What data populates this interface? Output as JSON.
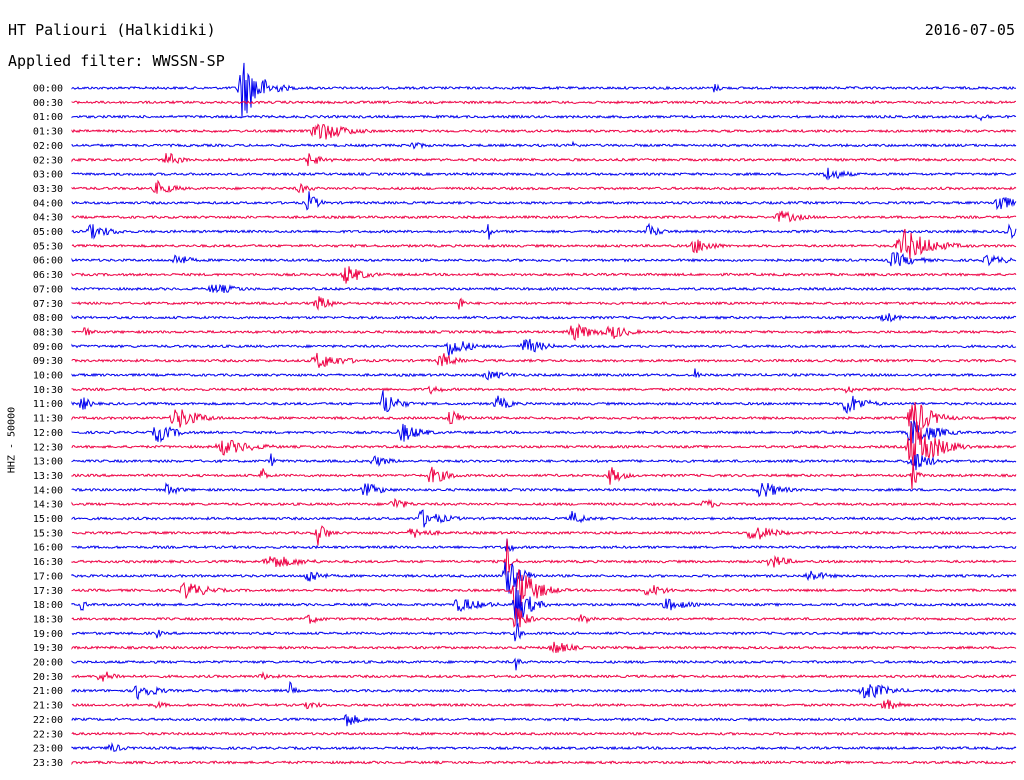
{
  "header": {
    "station": "HT Paliouri (Halkidiki)",
    "date": "2016-07-05",
    "filter_text": "Applied filter: WWSSN-SP"
  },
  "chart_data": {
    "type": "helicorder",
    "title": "HT Paliouri (Halkidiki)",
    "date": "2016-07-05",
    "ylabel": "HHZ - 50000",
    "line_minutes": 30,
    "colors": [
      "#0000ee",
      "#ee0044"
    ],
    "rows": [
      {
        "time": "00:00",
        "events": [
          {
            "x": 0.18,
            "amp": 3.5,
            "dur": 0.04
          },
          {
            "x": 0.68,
            "amp": 0.5,
            "dur": 0.02
          }
        ]
      },
      {
        "time": "00:30",
        "events": []
      },
      {
        "time": "01:00",
        "events": [
          {
            "x": 0.96,
            "amp": 0.5,
            "dur": 0.03
          }
        ]
      },
      {
        "time": "01:30",
        "events": [
          {
            "x": 0.26,
            "amp": 1.2,
            "dur": 0.06
          }
        ]
      },
      {
        "time": "02:00",
        "events": [
          {
            "x": 0.36,
            "amp": 0.5,
            "dur": 0.03
          },
          {
            "x": 0.53,
            "amp": 0.9,
            "dur": 0.01
          }
        ]
      },
      {
        "time": "02:30",
        "events": [
          {
            "x": 0.1,
            "amp": 0.9,
            "dur": 0.03
          },
          {
            "x": 0.25,
            "amp": 0.7,
            "dur": 0.04
          }
        ]
      },
      {
        "time": "03:00",
        "events": [
          {
            "x": 0.8,
            "amp": 0.8,
            "dur": 0.04
          }
        ]
      },
      {
        "time": "03:30",
        "events": [
          {
            "x": 0.09,
            "amp": 0.8,
            "dur": 0.04
          },
          {
            "x": 0.24,
            "amp": 0.6,
            "dur": 0.03
          }
        ]
      },
      {
        "time": "04:00",
        "events": [
          {
            "x": 0.25,
            "amp": 1.3,
            "dur": 0.02
          },
          {
            "x": 0.98,
            "amp": 1.2,
            "dur": 0.03
          }
        ]
      },
      {
        "time": "04:30",
        "events": [
          {
            "x": 0.75,
            "amp": 0.7,
            "dur": 0.05
          }
        ]
      },
      {
        "time": "05:00",
        "events": [
          {
            "x": 0.02,
            "amp": 0.8,
            "dur": 0.05
          },
          {
            "x": 0.44,
            "amp": 1.3,
            "dur": 0.01
          },
          {
            "x": 0.61,
            "amp": 0.8,
            "dur": 0.03
          },
          {
            "x": 0.99,
            "amp": 1.2,
            "dur": 0.02
          }
        ]
      },
      {
        "time": "05:30",
        "events": [
          {
            "x": 0.66,
            "amp": 0.9,
            "dur": 0.04
          },
          {
            "x": 0.88,
            "amp": 1.9,
            "dur": 0.06
          }
        ]
      },
      {
        "time": "06:00",
        "events": [
          {
            "x": 0.11,
            "amp": 0.8,
            "dur": 0.03
          },
          {
            "x": 0.87,
            "amp": 0.9,
            "dur": 0.05
          },
          {
            "x": 0.97,
            "amp": 0.6,
            "dur": 0.05
          }
        ]
      },
      {
        "time": "06:30",
        "events": [
          {
            "x": 0.29,
            "amp": 1.1,
            "dur": 0.04
          }
        ]
      },
      {
        "time": "07:00",
        "events": [
          {
            "x": 0.15,
            "amp": 0.6,
            "dur": 0.06
          }
        ]
      },
      {
        "time": "07:30",
        "events": [
          {
            "x": 0.26,
            "amp": 0.8,
            "dur": 0.04
          },
          {
            "x": 0.41,
            "amp": 1.0,
            "dur": 0.01
          }
        ]
      },
      {
        "time": "08:00",
        "events": [
          {
            "x": 0.86,
            "amp": 0.7,
            "dur": 0.03
          }
        ]
      },
      {
        "time": "08:30",
        "events": [
          {
            "x": 0.01,
            "amp": 0.8,
            "dur": 0.02
          },
          {
            "x": 0.53,
            "amp": 1.0,
            "dur": 0.05
          },
          {
            "x": 0.57,
            "amp": 0.9,
            "dur": 0.04
          }
        ]
      },
      {
        "time": "09:00",
        "events": [
          {
            "x": 0.4,
            "amp": 1.2,
            "dur": 0.04
          },
          {
            "x": 0.48,
            "amp": 1.0,
            "dur": 0.04
          }
        ]
      },
      {
        "time": "09:30",
        "events": [
          {
            "x": 0.26,
            "amp": 0.9,
            "dur": 0.06
          },
          {
            "x": 0.39,
            "amp": 1.0,
            "dur": 0.03
          }
        ]
      },
      {
        "time": "10:00",
        "events": [
          {
            "x": 0.44,
            "amp": 0.5,
            "dur": 0.06
          },
          {
            "x": 0.66,
            "amp": 0.7,
            "dur": 0.01
          }
        ]
      },
      {
        "time": "10:30",
        "events": [
          {
            "x": 0.38,
            "amp": 0.5,
            "dur": 0.03
          },
          {
            "x": 0.82,
            "amp": 0.6,
            "dur": 0.02
          }
        ]
      },
      {
        "time": "11:00",
        "events": [
          {
            "x": 0.01,
            "amp": 0.9,
            "dur": 0.02
          },
          {
            "x": 0.33,
            "amp": 1.6,
            "dur": 0.03
          },
          {
            "x": 0.45,
            "amp": 0.9,
            "dur": 0.03
          },
          {
            "x": 0.82,
            "amp": 1.3,
            "dur": 0.04
          }
        ]
      },
      {
        "time": "11:30",
        "events": [
          {
            "x": 0.11,
            "amp": 1.3,
            "dur": 0.05
          },
          {
            "x": 0.4,
            "amp": 1.0,
            "dur": 0.03
          },
          {
            "x": 0.89,
            "amp": 2.3,
            "dur": 0.04
          }
        ]
      },
      {
        "time": "12:00",
        "events": [
          {
            "x": 0.09,
            "amp": 1.1,
            "dur": 0.04
          },
          {
            "x": 0.35,
            "amp": 1.1,
            "dur": 0.04
          },
          {
            "x": 0.89,
            "amp": 1.6,
            "dur": 0.05
          }
        ]
      },
      {
        "time": "12:30",
        "events": [
          {
            "x": 0.16,
            "amp": 0.9,
            "dur": 0.07
          },
          {
            "x": 0.89,
            "amp": 3.2,
            "dur": 0.05
          }
        ]
      },
      {
        "time": "13:00",
        "events": [
          {
            "x": 0.21,
            "amp": 1.0,
            "dur": 0.01
          },
          {
            "x": 0.32,
            "amp": 0.6,
            "dur": 0.04
          },
          {
            "x": 0.89,
            "amp": 1.2,
            "dur": 0.04
          }
        ]
      },
      {
        "time": "13:30",
        "events": [
          {
            "x": 0.2,
            "amp": 1.3,
            "dur": 0.01
          },
          {
            "x": 0.38,
            "amp": 1.0,
            "dur": 0.04
          },
          {
            "x": 0.57,
            "amp": 1.0,
            "dur": 0.03
          },
          {
            "x": 0.89,
            "amp": 1.9,
            "dur": 0.01
          }
        ]
      },
      {
        "time": "14:00",
        "events": [
          {
            "x": 0.1,
            "amp": 0.7,
            "dur": 0.03
          },
          {
            "x": 0.31,
            "amp": 0.8,
            "dur": 0.04
          },
          {
            "x": 0.73,
            "amp": 1.1,
            "dur": 0.04
          }
        ]
      },
      {
        "time": "14:30",
        "events": [
          {
            "x": 0.34,
            "amp": 0.8,
            "dur": 0.03
          },
          {
            "x": 0.67,
            "amp": 0.6,
            "dur": 0.03
          }
        ]
      },
      {
        "time": "15:00",
        "events": [
          {
            "x": 0.37,
            "amp": 1.0,
            "dur": 0.05
          },
          {
            "x": 0.53,
            "amp": 0.8,
            "dur": 0.03
          }
        ]
      },
      {
        "time": "15:30",
        "events": [
          {
            "x": 0.26,
            "amp": 1.5,
            "dur": 0.02
          },
          {
            "x": 0.36,
            "amp": 0.6,
            "dur": 0.05
          },
          {
            "x": 0.72,
            "amp": 1.0,
            "dur": 0.05
          }
        ]
      },
      {
        "time": "16:00",
        "events": [
          {
            "x": 0.46,
            "amp": 1.5,
            "dur": 0.01
          }
        ]
      },
      {
        "time": "16:30",
        "events": [
          {
            "x": 0.21,
            "amp": 0.8,
            "dur": 0.07
          },
          {
            "x": 0.46,
            "amp": 2.8,
            "dur": 0.01
          },
          {
            "x": 0.74,
            "amp": 0.8,
            "dur": 0.04
          }
        ]
      },
      {
        "time": "17:00",
        "events": [
          {
            "x": 0.25,
            "amp": 0.9,
            "dur": 0.03
          },
          {
            "x": 0.46,
            "amp": 2.5,
            "dur": 0.03
          },
          {
            "x": 0.78,
            "amp": 0.7,
            "dur": 0.04
          }
        ]
      },
      {
        "time": "17:30",
        "events": [
          {
            "x": 0.12,
            "amp": 1.0,
            "dur": 0.05
          },
          {
            "x": 0.47,
            "amp": 3.0,
            "dur": 0.04
          },
          {
            "x": 0.61,
            "amp": 0.8,
            "dur": 0.04
          }
        ]
      },
      {
        "time": "18:00",
        "events": [
          {
            "x": 0.01,
            "amp": 0.8,
            "dur": 0.01
          },
          {
            "x": 0.41,
            "amp": 0.8,
            "dur": 0.06
          },
          {
            "x": 0.47,
            "amp": 2.5,
            "dur": 0.03
          },
          {
            "x": 0.63,
            "amp": 0.7,
            "dur": 0.05
          }
        ]
      },
      {
        "time": "18:30",
        "events": [
          {
            "x": 0.25,
            "amp": 0.6,
            "dur": 0.03
          },
          {
            "x": 0.47,
            "amp": 2.0,
            "dur": 0.02
          },
          {
            "x": 0.54,
            "amp": 0.6,
            "dur": 0.03
          }
        ]
      },
      {
        "time": "19:00",
        "events": [
          {
            "x": 0.09,
            "amp": 0.6,
            "dur": 0.01
          },
          {
            "x": 0.47,
            "amp": 1.6,
            "dur": 0.01
          }
        ]
      },
      {
        "time": "19:30",
        "events": [
          {
            "x": 0.51,
            "amp": 0.8,
            "dur": 0.04
          }
        ]
      },
      {
        "time": "20:00",
        "events": [
          {
            "x": 0.47,
            "amp": 0.9,
            "dur": 0.01
          }
        ]
      },
      {
        "time": "20:30",
        "events": [
          {
            "x": 0.03,
            "amp": 0.7,
            "dur": 0.04
          },
          {
            "x": 0.2,
            "amp": 0.4,
            "dur": 0.04
          }
        ]
      },
      {
        "time": "21:00",
        "events": [
          {
            "x": 0.07,
            "amp": 1.0,
            "dur": 0.04
          },
          {
            "x": 0.23,
            "amp": 1.2,
            "dur": 0.01
          },
          {
            "x": 0.84,
            "amp": 1.1,
            "dur": 0.05
          }
        ]
      },
      {
        "time": "21:30",
        "events": [
          {
            "x": 0.09,
            "amp": 0.5,
            "dur": 0.02
          },
          {
            "x": 0.25,
            "amp": 0.5,
            "dur": 0.03
          },
          {
            "x": 0.86,
            "amp": 0.8,
            "dur": 0.03
          }
        ]
      },
      {
        "time": "22:00",
        "events": [
          {
            "x": 0.29,
            "amp": 0.9,
            "dur": 0.03
          }
        ]
      },
      {
        "time": "22:30",
        "events": []
      },
      {
        "time": "23:00",
        "events": [
          {
            "x": 0.04,
            "amp": 0.6,
            "dur": 0.03
          }
        ]
      },
      {
        "time": "23:30",
        "events": []
      }
    ]
  }
}
